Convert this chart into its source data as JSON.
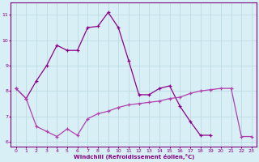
{
  "line1_x": [
    0,
    1,
    2,
    3,
    4,
    5,
    6,
    7,
    8,
    9,
    10,
    11,
    12,
    13,
    14,
    15,
    16,
    17,
    18,
    19,
    20,
    21,
    22,
    23
  ],
  "line1_y": [
    8.1,
    7.7,
    8.4,
    9.0,
    9.8,
    9.6,
    9.6,
    10.5,
    10.55,
    11.1,
    10.5,
    9.2,
    7.85,
    7.85,
    8.1,
    8.2,
    7.4,
    6.8,
    6.25,
    6.25,
    null,
    null,
    null,
    null
  ],
  "line2_x": [
    0,
    1,
    2,
    3,
    4,
    5,
    6,
    7,
    8,
    9,
    10,
    11,
    12,
    13,
    14,
    15,
    16,
    17,
    18,
    19,
    20,
    21,
    22,
    23
  ],
  "line2_y": [
    8.1,
    7.7,
    6.6,
    6.4,
    6.2,
    6.5,
    6.25,
    6.9,
    7.1,
    7.2,
    7.35,
    7.45,
    7.5,
    7.55,
    7.6,
    7.7,
    7.75,
    7.9,
    8.0,
    8.05,
    8.1,
    8.1,
    6.2,
    6.2
  ],
  "bg_color": "#d8eff5",
  "grid_color": "#b8d8e0",
  "line1_color": "#8b008b",
  "line2_color": "#b040b0",
  "xlabel": "Windchill (Refroidissement éolien,°C)",
  "xlim": [
    -0.5,
    23.5
  ],
  "ylim": [
    5.8,
    11.5
  ],
  "yticks": [
    6,
    7,
    8,
    9,
    10,
    11
  ],
  "xticks": [
    0,
    1,
    2,
    3,
    4,
    5,
    6,
    7,
    8,
    9,
    10,
    11,
    12,
    13,
    14,
    15,
    16,
    17,
    18,
    19,
    20,
    21,
    22,
    23
  ],
  "xtick_labels": [
    "0",
    "1",
    "2",
    "3",
    "4",
    "5",
    "6",
    "7",
    "8",
    "9",
    "10",
    "11",
    "12",
    "13",
    "14",
    "15",
    "16",
    "17",
    "18",
    "19",
    "20",
    "21",
    "22",
    "23"
  ]
}
